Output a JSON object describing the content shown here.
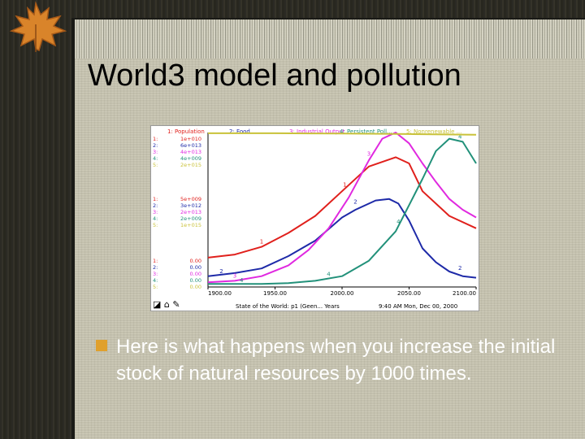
{
  "slide": {
    "title": "World3 model and pollution",
    "bullet": "Here is what happens when you increase  the initial stock of natural resources by 1000 times."
  },
  "colors": {
    "population": "#e0201c",
    "food": "#1e2aa8",
    "industrial_output": "#e029e0",
    "persistent_pollution": "#22917a",
    "nonrenewable": "#c9c23a",
    "bullet": "#e0a02c"
  },
  "chart_data": {
    "type": "line",
    "legend": [
      {
        "num": "1",
        "name": "Population"
      },
      {
        "num": "2",
        "name": "Food"
      },
      {
        "num": "3",
        "name": "Industrial Output"
      },
      {
        "num": "4",
        "name": "Persistent Poll..."
      },
      {
        "num": "5",
        "name": "Nonrenewable ..."
      }
    ],
    "scale_groups": [
      [
        "1e+010",
        "6e+013",
        "4e+013",
        "4e+009",
        "2e+015"
      ],
      [
        "5e+009",
        "3e+012",
        "2e+013",
        "2e+009",
        "1e+015"
      ],
      [
        "0.00",
        "0.00",
        "0.00",
        "0.00",
        "0.00"
      ]
    ],
    "x_ticks": [
      "1900.00",
      "1950.00",
      "2000.00",
      "2050.00",
      "2100.00"
    ],
    "xlim": [
      1900,
      2100
    ],
    "ylim": [
      0,
      1
    ],
    "series": [
      {
        "name": "Population",
        "color": "#e0201c",
        "label": "1",
        "x": [
          1900,
          1920,
          1940,
          1960,
          1980,
          2000,
          2020,
          2040,
          2050,
          2060,
          2080,
          2100
        ],
        "y": [
          0.19,
          0.21,
          0.26,
          0.35,
          0.46,
          0.62,
          0.78,
          0.84,
          0.8,
          0.62,
          0.46,
          0.38
        ],
        "markers": [
          [
            1940,
            0.27
          ],
          [
            2002,
            0.64
          ]
        ]
      },
      {
        "name": "Food",
        "color": "#1e2aa8",
        "label": "2",
        "x": [
          1900,
          1920,
          1940,
          1960,
          1980,
          2000,
          2010,
          2025,
          2035,
          2042,
          2050,
          2060,
          2070,
          2080,
          2090,
          2100
        ],
        "y": [
          0.07,
          0.09,
          0.12,
          0.2,
          0.3,
          0.45,
          0.5,
          0.56,
          0.57,
          0.54,
          0.43,
          0.25,
          0.16,
          0.1,
          0.07,
          0.06
        ],
        "markers": [
          [
            1910,
            0.08
          ],
          [
            2010,
            0.53
          ],
          [
            2088,
            0.1
          ]
        ]
      },
      {
        "name": "Industrial Output",
        "color": "#e029e0",
        "label": "3",
        "x": [
          1900,
          1920,
          1940,
          1960,
          1975,
          1990,
          2005,
          2020,
          2030,
          2040,
          2050,
          2060,
          2070,
          2080,
          2090,
          2100
        ],
        "y": [
          0.03,
          0.04,
          0.07,
          0.14,
          0.24,
          0.38,
          0.58,
          0.82,
          0.96,
          1.0,
          0.93,
          0.8,
          0.68,
          0.57,
          0.5,
          0.45
        ],
        "markers": [
          [
            1920,
            0.05
          ],
          [
            2020,
            0.84
          ]
        ]
      },
      {
        "name": "Persistent Pollution",
        "color": "#22917a",
        "label": "4",
        "x": [
          1900,
          1940,
          1960,
          1980,
          2000,
          2020,
          2040,
          2060,
          2070,
          2080,
          2090,
          2100
        ],
        "y": [
          0.02,
          0.02,
          0.025,
          0.04,
          0.07,
          0.17,
          0.36,
          0.7,
          0.88,
          0.96,
          0.94,
          0.8
        ],
        "markers": [
          [
            1925,
            0.02
          ],
          [
            1990,
            0.06
          ],
          [
            2042,
            0.4
          ],
          [
            2088,
            0.95
          ]
        ]
      },
      {
        "name": "Nonrenewable",
        "color": "#c9c23a",
        "label": "5",
        "x": [
          1900,
          1950,
          2000,
          2050,
          2100
        ],
        "y": [
          0.995,
          0.995,
          0.993,
          0.99,
          0.985
        ],
        "markers": []
      }
    ],
    "footer": {
      "title": "State of the World: p1 (Geen... Years",
      "time": "9:40 AM  Mon, Dec 00, 2000"
    }
  }
}
